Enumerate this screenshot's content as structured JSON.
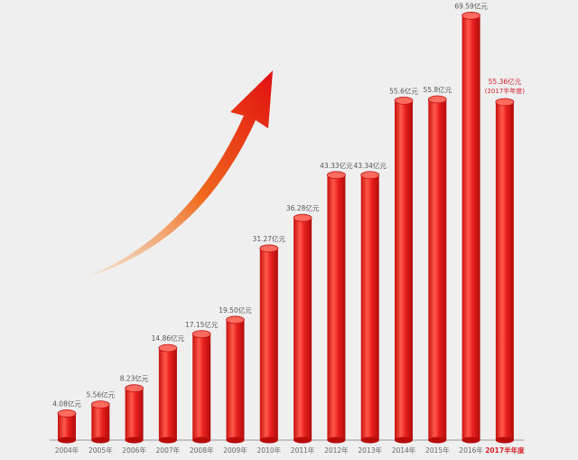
{
  "chart_data": {
    "type": "bar",
    "categories": [
      "2004年",
      "2005年",
      "2006年",
      "2007年",
      "2008年",
      "2009年",
      "2010年",
      "2011年",
      "2012年",
      "2013年",
      "2014年",
      "2015年",
      "2016年",
      "2017半年度"
    ],
    "values": [
      4.08,
      5.56,
      8.23,
      14.86,
      17.15,
      19.5,
      31.27,
      36.28,
      43.33,
      43.34,
      55.6,
      55.8,
      69.59,
      55.36
    ],
    "data_labels": [
      "4.08亿元",
      "5.56亿元",
      "8.23亿元",
      "14.86亿元",
      "17.15亿元",
      "19.50亿元",
      "31.27亿元",
      "36.28亿元",
      "43.33亿元",
      "43.34亿元",
      "55.6亿元",
      "55.8亿元",
      "69.59亿元",
      "55.36亿元"
    ],
    "last_label_note": "(2017半年度)",
    "title": "",
    "xlabel": "",
    "ylabel": "",
    "ylim": [
      0,
      70
    ],
    "grid": false,
    "colors": {
      "bar": "#e8201e",
      "highlight_label": "#d4202a",
      "label": "#555555"
    }
  }
}
